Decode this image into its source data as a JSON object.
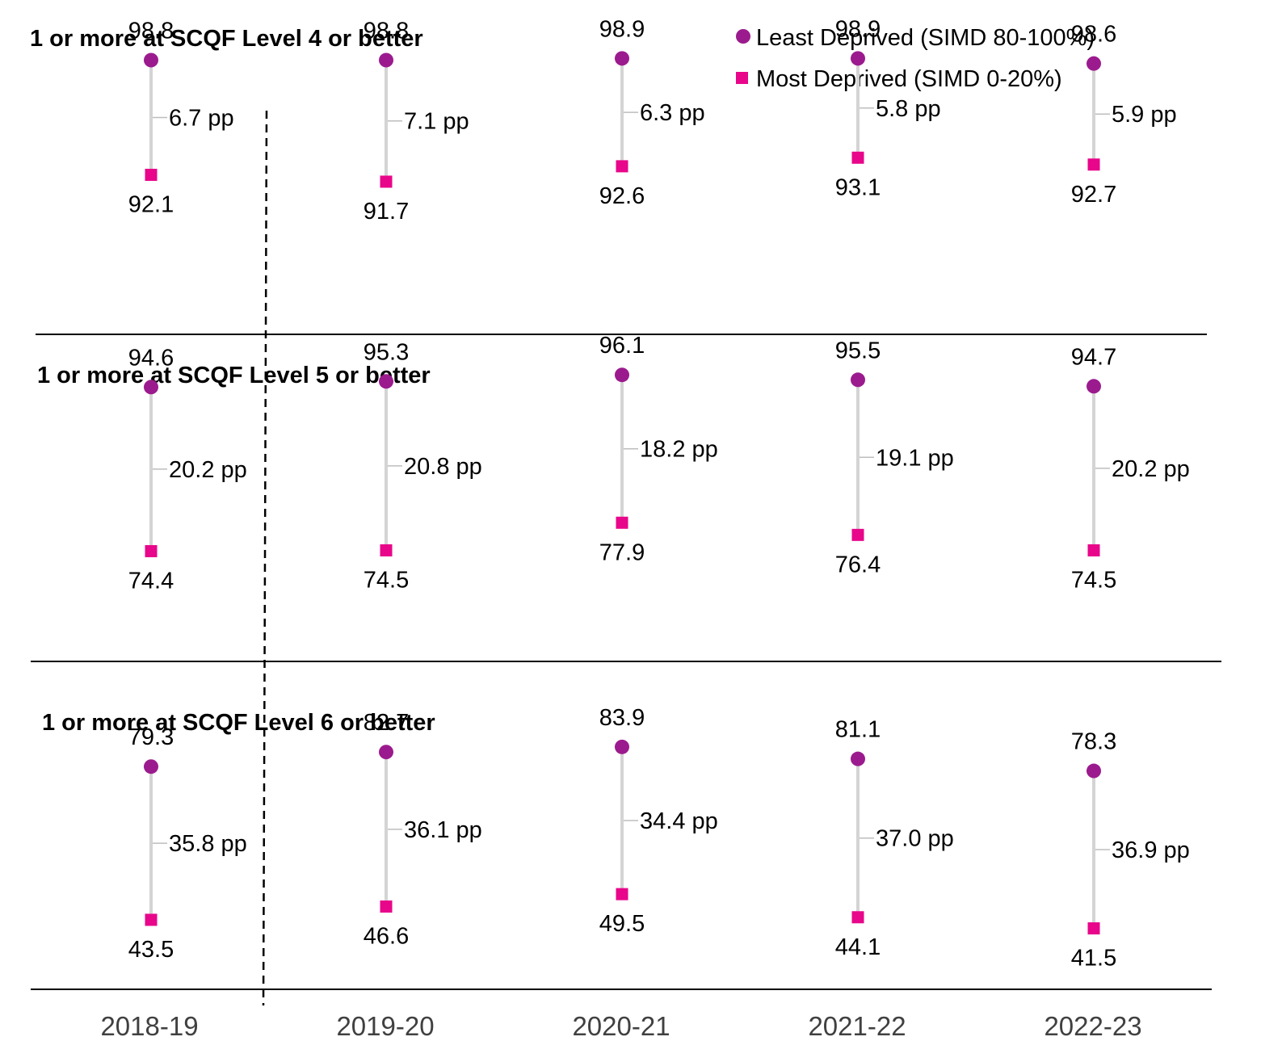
{
  "chart_data": {
    "type": "dumbbell",
    "categories": [
      "2018-19",
      "2019-20",
      "2020-21",
      "2021-22",
      "2022-23"
    ],
    "legend": {
      "placement": "top-right",
      "items": [
        {
          "name": "Least Deprived (SIMD 80-100%)",
          "color": "#9b1b8e",
          "marker": "circle"
        },
        {
          "name": "Most Deprived (SIMD 0-20%)",
          "color": "#e8068a",
          "marker": "square"
        }
      ]
    },
    "gap_unit": "pp",
    "panels": [
      {
        "title": "1 or more at SCQF Level 4 or better",
        "least": [
          98.8,
          98.8,
          98.9,
          98.9,
          98.6
        ],
        "most": [
          92.1,
          91.7,
          92.6,
          93.1,
          92.7
        ],
        "gap": [
          6.7,
          7.1,
          6.3,
          5.8,
          5.9
        ]
      },
      {
        "title": "1 or more at SCQF Level 5 or better",
        "least": [
          94.6,
          95.3,
          96.1,
          95.5,
          94.7
        ],
        "most": [
          74.4,
          74.5,
          77.9,
          76.4,
          74.5
        ],
        "gap": [
          20.2,
          20.8,
          18.2,
          19.1,
          20.2
        ]
      },
      {
        "title": "1 or more at SCQF Level 6 or better",
        "least": [
          79.3,
          82.7,
          83.9,
          81.1,
          78.3
        ],
        "most": [
          43.5,
          46.6,
          49.5,
          44.1,
          41.5
        ],
        "gap": [
          35.8,
          36.1,
          34.4,
          37.0,
          36.9
        ]
      }
    ],
    "divider_after_category": "2018-19",
    "grid": false
  }
}
